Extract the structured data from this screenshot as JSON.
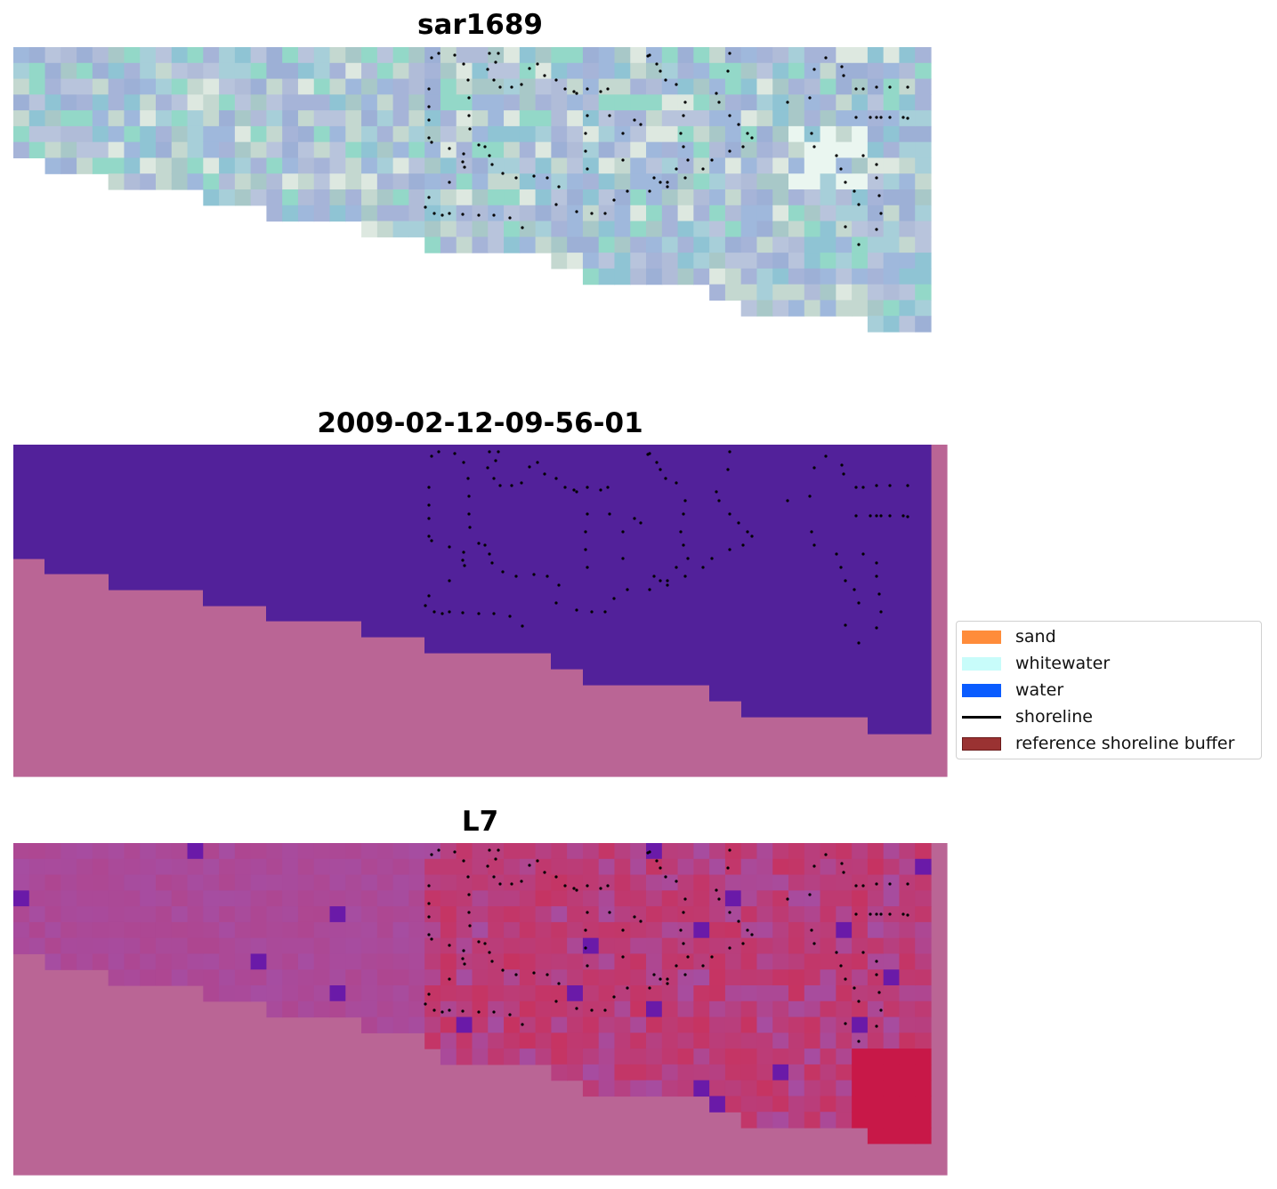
{
  "panels": [
    {
      "title": "sar1689",
      "kind": "rgb"
    },
    {
      "title": "2009-02-12-09-56-01",
      "kind": "classified"
    },
    {
      "title": "L7",
      "kind": "index"
    }
  ],
  "colors": {
    "water_class": "#52219a",
    "land_class": "#ba6595",
    "index_low": "#a64da1",
    "index_high": "#c8325e"
  },
  "legend": {
    "items": [
      {
        "label": "sand",
        "color": "#ff8c3a",
        "type": "patch"
      },
      {
        "label": "whitewater",
        "color": "#c8fcfa",
        "type": "patch"
      },
      {
        "label": "water",
        "color": "#0a5cff",
        "type": "patch"
      },
      {
        "label": "shoreline",
        "color": "#000000",
        "type": "line"
      },
      {
        "label": "reference shoreline buffer",
        "color": "#9a3232",
        "type": "patch"
      }
    ]
  }
}
